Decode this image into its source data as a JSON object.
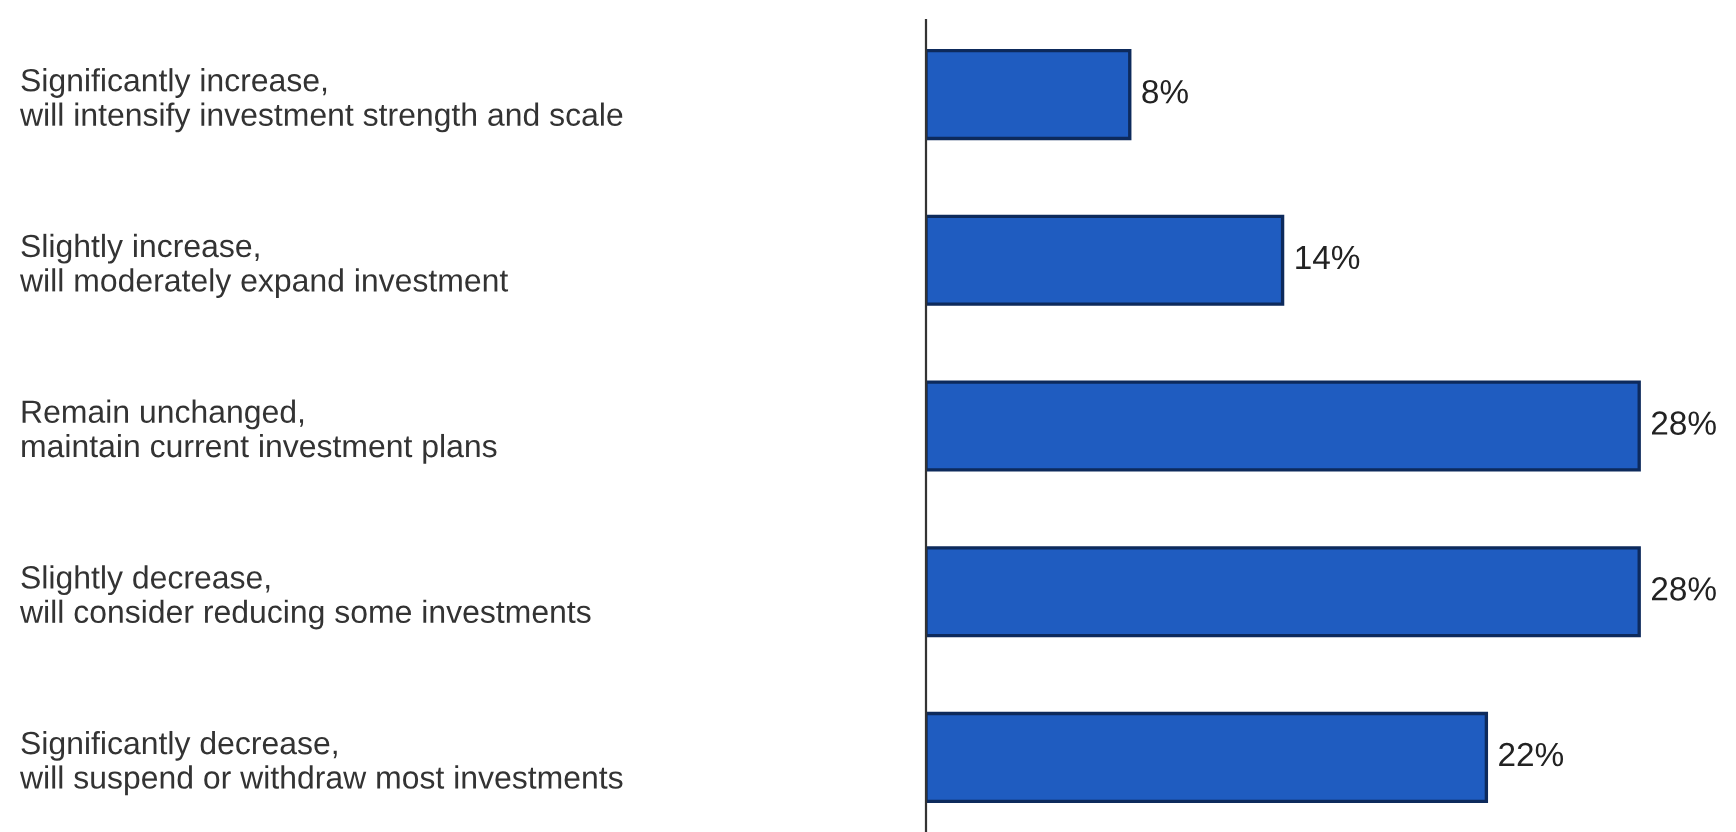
{
  "chart_data": {
    "type": "bar",
    "orientation": "horizontal",
    "categories": [
      "Significantly increase,\nwill intensify investment strength and scale",
      "Slightly increase,\nwill moderately expand investment",
      "Remain unchanged,\nmaintain current investment plans",
      "Slightly decrease,\nwill consider reducing some investments",
      "Significantly decrease,\nwill suspend or withdraw most investments"
    ],
    "values": [
      8,
      14,
      28,
      28,
      22
    ],
    "value_labels": [
      "8%",
      "14%",
      "28%",
      "28%",
      "22%"
    ],
    "color": "#1f5cc0",
    "grid": false,
    "legend": false
  }
}
